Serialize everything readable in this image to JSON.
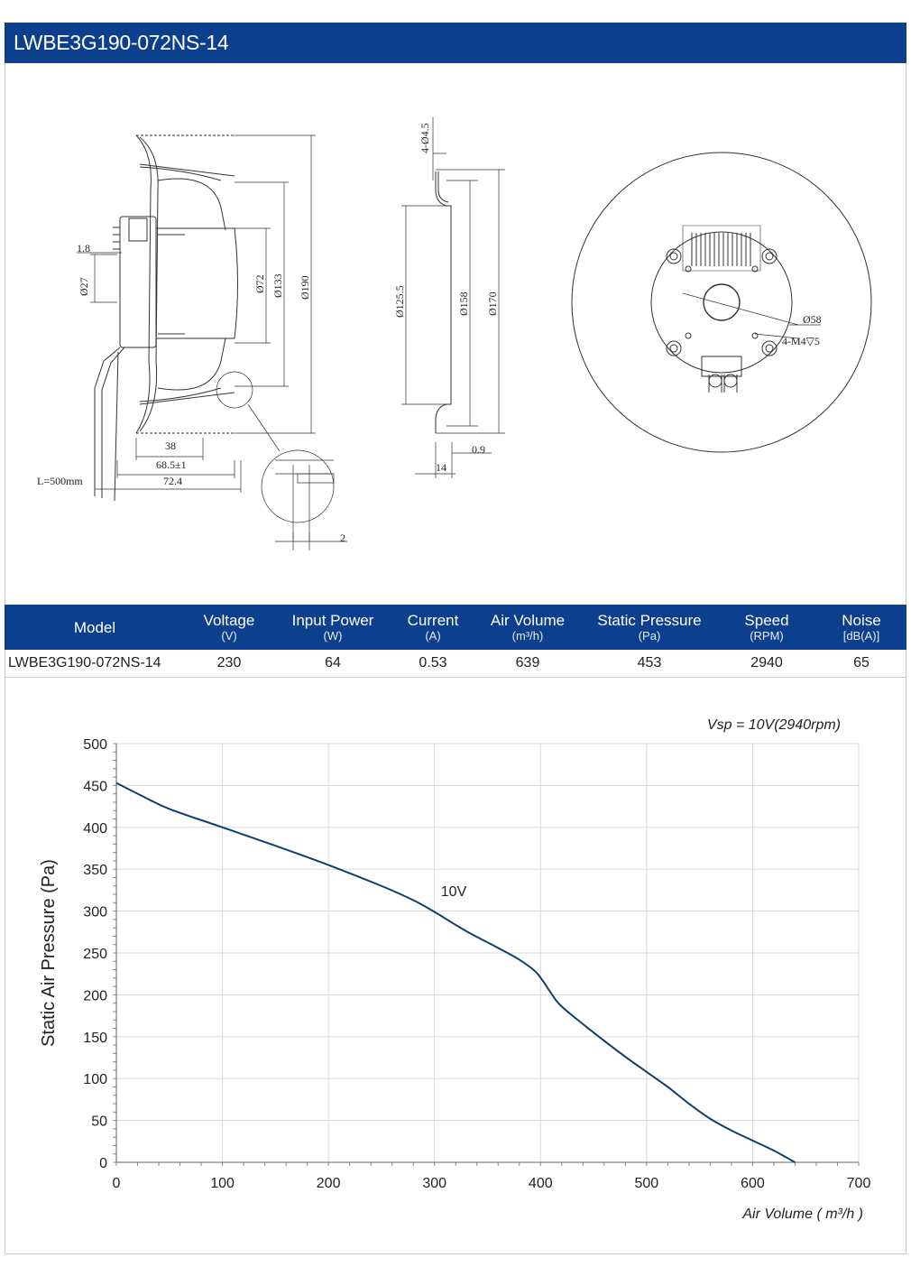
{
  "header": {
    "title": "LWBE3G190-072NS-14"
  },
  "drawing": {
    "side_view": {
      "d_1_8": "1.8",
      "d_27": "Ø27",
      "d_72": "Ø72",
      "d_133": "Ø133",
      "d_190": "Ø190",
      "d_38": "38",
      "d_68_5": "68.5±1",
      "d_72_4": "72.4",
      "cable": "L=500mm",
      "d_2": "2"
    },
    "section_view": {
      "holes": "4-Ø4.5",
      "d_125_5": "Ø125.5",
      "d_158": "Ø158",
      "d_170": "Ø170",
      "d_0_9": "0.9",
      "d_14": "14"
    },
    "front_view": {
      "d_58": "Ø58",
      "thread": "4-M4▽5"
    }
  },
  "spec_table": {
    "columns": [
      {
        "label": "Model",
        "unit": ""
      },
      {
        "label": "Voltage",
        "unit": "(V)"
      },
      {
        "label": "Input Power",
        "unit": "(W)"
      },
      {
        "label": "Current",
        "unit": "(A)"
      },
      {
        "label": "Air Volume",
        "unit": "(m³/h)"
      },
      {
        "label": "Static Pressure",
        "unit": "(Pa)"
      },
      {
        "label": "Speed",
        "unit": "(RPM)"
      },
      {
        "label": "Noise",
        "unit": "[dB(A)]"
      }
    ],
    "row": [
      "LWBE3G190-072NS-14",
      "230",
      "64",
      "0.53",
      "639",
      "453",
      "2940",
      "65"
    ]
  },
  "chart_data": {
    "type": "line",
    "title": "Vsp = 10V(2940rpm)",
    "xlabel": "Air Volume ( m³/h )",
    "ylabel": "Static Air Pressure  (Pa)",
    "xlim": [
      0,
      700
    ],
    "ylim": [
      0,
      500
    ],
    "xticks": [
      0,
      100,
      200,
      300,
      400,
      500,
      600,
      700
    ],
    "yticks": [
      0,
      50,
      100,
      150,
      200,
      250,
      300,
      350,
      400,
      450,
      500
    ],
    "grid": true,
    "series": [
      {
        "name": "10V",
        "color": "#0d3f6e",
        "x": [
          0,
          25,
          50,
          100,
          150,
          200,
          250,
          280,
          300,
          330,
          360,
          380,
          395,
          402,
          410,
          420,
          450,
          480,
          500,
          520,
          540,
          560,
          580,
          600,
          620,
          640
        ],
        "y": [
          453,
          437,
          422,
          400,
          378,
          355,
          330,
          313,
          299,
          276,
          256,
          242,
          228,
          217,
          202,
          186,
          155,
          126,
          108,
          90,
          70,
          52,
          38,
          26,
          14,
          0
        ]
      }
    ]
  }
}
